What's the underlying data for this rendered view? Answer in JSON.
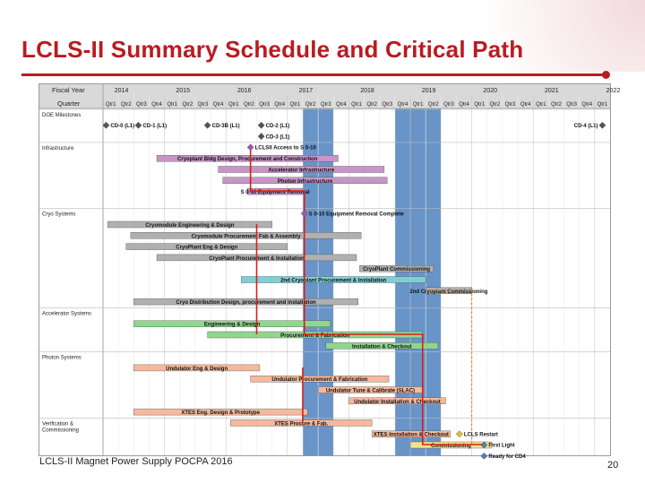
{
  "slide": {
    "title": "LCLS-II Summary Schedule and Critical Path",
    "footer": "LCLS-II Magnet Power Supply POCPA 2016",
    "page_number": "20"
  },
  "colors": {
    "accent": "#b81c20",
    "header_bg": "#d9d9d9",
    "highlight_column": "#4f81bd",
    "critical_path": "#d91e18"
  },
  "chart_data": {
    "type": "gantt",
    "header": {
      "fiscal_year_label": "Fiscal Year",
      "quarter_label": "Quarter"
    },
    "fiscal_years": [
      "2014",
      "2015",
      "2016",
      "2017",
      "2018",
      "2019",
      "2020",
      "2021",
      "2022"
    ],
    "quarters": [
      "Qtr1",
      "Qtr2",
      "Qtr3",
      "Qtr4"
    ],
    "start_fy": 2014,
    "total_quarters": 33,
    "highlight_quarters": [
      [
        13,
        15
      ],
      [
        19,
        22
      ]
    ],
    "groups": [
      {
        "label": "DOE Milestones",
        "row": 0
      },
      {
        "label": "Infrastructure",
        "row": 3
      },
      {
        "label": "Cryo Systems",
        "row": 9
      },
      {
        "label": "Accelerator Systems",
        "row": 18
      },
      {
        "label": "Photon Systems",
        "row": 22
      },
      {
        "label": "Verification & Commissioning",
        "row": 28
      }
    ],
    "milestones": [
      {
        "label": "CD-0 (L1)",
        "q": 0.2,
        "row": 1,
        "color": "#555555"
      },
      {
        "label": "CD-1 (L1)",
        "q": 2.3,
        "row": 1,
        "color": "#555555"
      },
      {
        "label": "CD-3B (L1)",
        "q": 6.8,
        "row": 1,
        "color": "#555555"
      },
      {
        "label": "CD-2 (L1)",
        "q": 10.3,
        "row": 1,
        "color": "#555555"
      },
      {
        "label": "CD-3 (L1)",
        "q": 10.3,
        "row": 2,
        "color": "#555555"
      },
      {
        "label": "CD-4 (L1)",
        "q": 32.5,
        "row": 1,
        "color": "#555555"
      },
      {
        "label": "LCLSII Access to S 0-10",
        "q": 9.6,
        "row": 3,
        "color": "#9b59b6"
      },
      {
        "label": "S 0-10 Equipment Removal Complete",
        "q": 13.1,
        "row": 9,
        "color": "#9b59b6"
      },
      {
        "label": "LCLS Restart",
        "q": 23.2,
        "row": 29,
        "color": "#e0c030"
      },
      {
        "label": "First Light",
        "q": 24.8,
        "row": 30,
        "color": "#4f81bd"
      },
      {
        "label": "Ready for CD4",
        "q": 24.8,
        "row": 31,
        "color": "#4f81bd"
      }
    ],
    "tasks": [
      {
        "label": "Cryoplant Bldg Design, Procurement and Construction",
        "start": 3.5,
        "end": 15.3,
        "row": 4,
        "color": "#c895c8"
      },
      {
        "label": "Accelerator Infrastructure",
        "start": 7.5,
        "end": 18.3,
        "row": 5,
        "color": "#c895c8"
      },
      {
        "label": "Photon Infrastructure",
        "start": 7.8,
        "end": 18.5,
        "row": 6,
        "color": "#c895c8"
      },
      {
        "label": "S 0-10 Equipment Removal",
        "start": 9.4,
        "end": 13.0,
        "row": 7,
        "color": "#c895c8"
      },
      {
        "label": "Cryomodule Engineering & Design",
        "start": 0.3,
        "end": 11.0,
        "row": 10,
        "color": "#b0b0b0"
      },
      {
        "label": "Cryomodule Procurement Fab & Assembly",
        "start": 1.8,
        "end": 16.8,
        "row": 11,
        "color": "#b0b0b0"
      },
      {
        "label": "CryoPlant Eng & Design",
        "start": 1.5,
        "end": 12.0,
        "row": 12,
        "color": "#b0b0b0"
      },
      {
        "label": "CryoPlant Procurement & Installation",
        "start": 3.5,
        "end": 16.5,
        "row": 13,
        "color": "#b0b0b0"
      },
      {
        "label": "CryoPlant Commissioning",
        "start": 16.7,
        "end": 21.5,
        "row": 14,
        "color": "#b0b0b0"
      },
      {
        "label": "2nd Cryoplant Procurement & Installation",
        "start": 9.0,
        "end": 21.0,
        "row": 15,
        "color": "#7fcfd4"
      },
      {
        "label": "2nd Cryoplant Commissioning",
        "start": 21.0,
        "end": 24.0,
        "row": 16,
        "color": "#b0b0b0"
      },
      {
        "label": "Cryo Distribution Design, procurement and installation",
        "start": 2.0,
        "end": 16.6,
        "row": 17,
        "color": "#b0b0b0"
      },
      {
        "label": "Engineering & Design",
        "start": 2.0,
        "end": 14.8,
        "row": 19,
        "color": "#8fd68f"
      },
      {
        "label": "Procurement & Fabrication",
        "start": 6.8,
        "end": 20.8,
        "row": 20,
        "color": "#8fd68f"
      },
      {
        "label": "Installation & Checkout",
        "start": 14.5,
        "end": 21.8,
        "row": 21,
        "color": "#8fd68f"
      },
      {
        "label": "Undulator Eng & Design",
        "start": 2.0,
        "end": 10.2,
        "row": 23,
        "color": "#f5b99d"
      },
      {
        "label": "Undulator Procurement & Fabrication",
        "start": 9.6,
        "end": 18.6,
        "row": 24,
        "color": "#f5b99d"
      },
      {
        "label": "Undulator Tune & Calibrate (SLAC)",
        "start": 14.0,
        "end": 20.8,
        "row": 25,
        "color": "#f5b99d"
      },
      {
        "label": "Undulator Installation & Checkout",
        "start": 16.0,
        "end": 22.3,
        "row": 26,
        "color": "#f5b99d"
      },
      {
        "label": "XTES Eng. Design & Prototype",
        "start": 2.0,
        "end": 13.3,
        "row": 27,
        "color": "#f5b99d"
      },
      {
        "label": "XTES Procure & Fab.",
        "start": 8.3,
        "end": 17.5,
        "row": 28,
        "color": "#f5b99d"
      },
      {
        "label": "XTES Installation & Checkout",
        "start": 17.5,
        "end": 22.6,
        "row": 29,
        "color": "#f5b99d"
      },
      {
        "label": "Commissioning",
        "start": 20.0,
        "end": 25.3,
        "row": 30,
        "color": "#f2e48a"
      }
    ]
  }
}
